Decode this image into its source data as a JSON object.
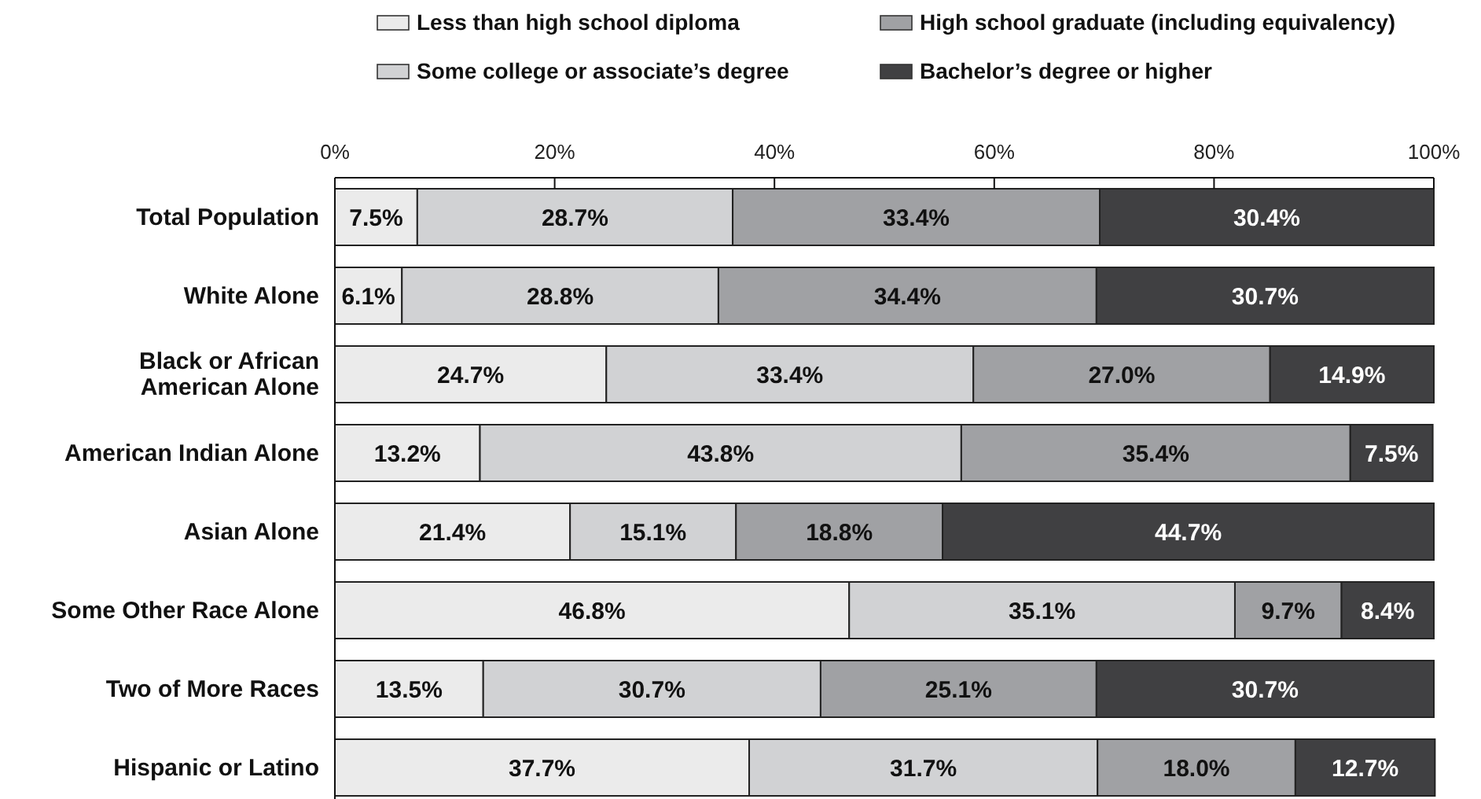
{
  "chart_data": {
    "type": "bar",
    "orientation": "horizontal",
    "stacked": true,
    "legend": "top",
    "categories": [
      "Total Population",
      "White Alone",
      "Black or African\nAmerican Alone",
      "American Indian Alone",
      "Asian Alone",
      "Some Other Race Alone",
      "Two of More Races",
      "Hispanic or Latino"
    ],
    "xlim": [
      0,
      100
    ],
    "xticks": [
      {
        "value": 0,
        "label": "0%"
      },
      {
        "value": 20,
        "label": "20%"
      },
      {
        "value": 40,
        "label": "40%"
      },
      {
        "value": 60,
        "label": "60%"
      },
      {
        "value": 80,
        "label": "80%"
      },
      {
        "value": 100,
        "label": "100%"
      }
    ],
    "series": [
      {
        "name": "Less than high school diploma",
        "color": "#ebebeb",
        "values": [
          7.5,
          6.1,
          24.7,
          13.2,
          21.4,
          46.8,
          13.5,
          37.7
        ],
        "value_labels": [
          "7.5%",
          "6.1%",
          "24.7%",
          "13.2%",
          "21.4%",
          "46.8%",
          "13.5%",
          "37.7%"
        ]
      },
      {
        "name": "Some college or associate’s degree",
        "color": "#d1d2d4",
        "values": [
          28.7,
          28.8,
          33.4,
          43.8,
          15.1,
          35.1,
          30.7,
          31.7
        ],
        "value_labels": [
          "28.7%",
          "28.8%",
          "33.4%",
          "43.8%",
          "15.1%",
          "35.1%",
          "30.7%",
          "31.7%"
        ]
      },
      {
        "name": "High school graduate (including equivalency)",
        "color": "#a0a1a4",
        "values": [
          33.4,
          34.4,
          27.0,
          35.4,
          18.8,
          9.7,
          25.1,
          18.0
        ],
        "value_labels": [
          "33.4%",
          "34.4%",
          "27.0%",
          "35.4%",
          "18.8%",
          "9.7%",
          "25.1%",
          "18.0%"
        ]
      },
      {
        "name": "Bachelor’s degree or higher",
        "color": "#404042",
        "values": [
          30.4,
          30.7,
          14.9,
          7.5,
          44.7,
          8.4,
          30.7,
          12.7
        ],
        "value_labels": [
          "30.4%",
          "30.7%",
          "14.9%",
          "7.5%",
          "44.7%",
          "8.4%",
          "30.7%",
          "12.7%"
        ]
      }
    ]
  }
}
